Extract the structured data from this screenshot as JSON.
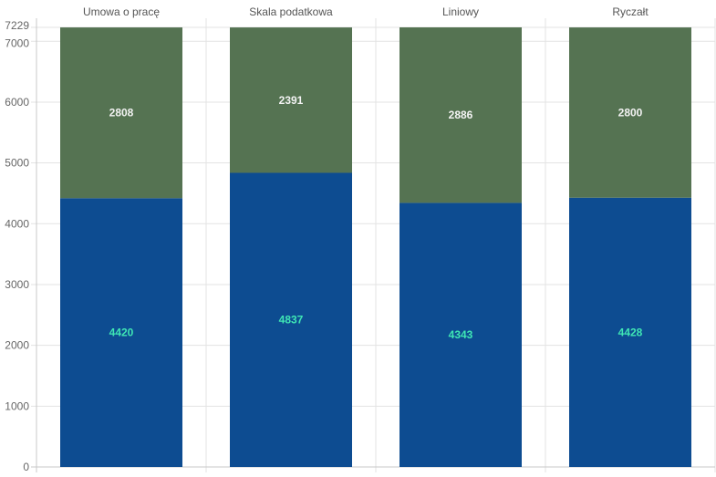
{
  "chart_data": {
    "type": "bar",
    "stacked": true,
    "x_axis_position": "top",
    "categories": [
      "Umowa o pracę",
      "Skala podatkowa",
      "Liniowy",
      "Ryczałt"
    ],
    "series": [
      {
        "values": [
          4420,
          4837,
          4343,
          4428
        ],
        "color": "#0d4c91",
        "label_color": "#3fe6b4"
      },
      {
        "values": [
          2808,
          2391,
          2886,
          2800
        ],
        "color": "#557352",
        "label_color": "#f3f3f3"
      }
    ],
    "y_ticks": [
      0,
      1000,
      2000,
      3000,
      4000,
      5000,
      6000,
      7000,
      7229
    ],
    "ylim": [
      0,
      7229
    ],
    "grid": true
  }
}
